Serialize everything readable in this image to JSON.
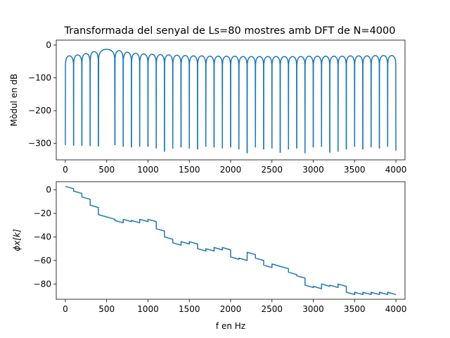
{
  "chart_data": [
    {
      "type": "line",
      "title": "Transformada del senyal de Ls=80 mostres amb DFT de N=4000",
      "xlabel": "",
      "ylabel": "Mòdul en dB",
      "xlim": [
        -110,
        4110
      ],
      "ylim": [
        -350,
        15
      ],
      "xticks": [
        0,
        500,
        1000,
        1500,
        2000,
        2500,
        3000,
        3500,
        4000
      ],
      "yticks": [
        0,
        -100,
        -200,
        -300
      ],
      "xtick_labels": [
        "0",
        "500",
        "1000",
        "1500",
        "2000",
        "2500",
        "3000",
        "3500",
        "4000"
      ],
      "ytick_labels": [
        "0",
        "−100",
        "−200",
        "−300"
      ],
      "grid": false,
      "color": "#1f77b4",
      "series": [
        {
          "main_lobe_center_hz": 500,
          "main_lobe_peak_db": 0,
          "null_spacing_hz": 100,
          "null_frequencies_hz": [
            0,
            100,
            200,
            300,
            400,
            600,
            700,
            800,
            900,
            1000,
            1100,
            1200,
            1300,
            1400,
            1500,
            1600,
            1700,
            1800,
            1900,
            2000,
            2100,
            2200,
            2300,
            2400,
            2500,
            2600,
            2700,
            2800,
            2900,
            3000,
            3100,
            3200,
            3300,
            3400,
            3500,
            3600,
            3700,
            3800,
            3900,
            4000
          ],
          "null_depths_db": [
            -305,
            -307,
            -307,
            -308,
            -309,
            -305,
            -310,
            -312,
            -310,
            -310,
            -315,
            -325,
            -315,
            -312,
            -315,
            -318,
            -310,
            -312,
            -315,
            -312,
            -318,
            -330,
            -312,
            -318,
            -315,
            -328,
            -318,
            -315,
            -330,
            -312,
            -310,
            -328,
            -325,
            -318,
            -310,
            -318,
            -312,
            -315,
            -310,
            -322
          ],
          "sidelobe_peaks_db": [
            -33,
            -30,
            -26,
            -20,
            -13,
            -17,
            -22,
            -25,
            -27,
            -28,
            -29,
            -30,
            -31,
            -32,
            -33,
            -33,
            -34,
            -34,
            -34,
            -34,
            -35,
            -35,
            -35,
            -35,
            -35,
            -35,
            -35,
            -35,
            -34,
            -34,
            -34,
            -34,
            -34,
            -33,
            -33,
            -33,
            -32,
            -32,
            -32
          ]
        }
      ]
    },
    {
      "type": "line",
      "title": "",
      "xlabel": "f en Hz",
      "ylabel": "ϕx[k]",
      "xlim": [
        -110,
        4110
      ],
      "ylim": [
        -93,
        7
      ],
      "xticks": [
        0,
        500,
        1000,
        1500,
        2000,
        2500,
        3000,
        3500,
        4000
      ],
      "yticks": [
        0,
        -20,
        -40,
        -60,
        -80
      ],
      "xtick_labels": [
        "0",
        "500",
        "1000",
        "1500",
        "2000",
        "2500",
        "3000",
        "3500",
        "4000"
      ],
      "ytick_labels": [
        "0",
        "−20",
        "−40",
        "−60",
        "−80"
      ],
      "grid": false,
      "color": "#1f77b4",
      "series": [
        {
          "segments": [
            {
              "f0": 0,
              "y0": 3,
              "f1": 100,
              "y1": 1
            },
            {
              "f0": 100,
              "y0": -1,
              "f1": 200,
              "y1": -3
            },
            {
              "f0": 200,
              "y0": -6,
              "f1": 300,
              "y1": -8
            },
            {
              "f0": 300,
              "y0": -13,
              "f1": 400,
              "y1": -15
            },
            {
              "f0": 400,
              "y0": -21,
              "f1": 600,
              "y1": -25
            },
            {
              "f0": 600,
              "y0": -26,
              "f1": 700,
              "y1": -28
            },
            {
              "f0": 700,
              "y0": -25,
              "f1": 800,
              "y1": -27
            },
            {
              "f0": 800,
              "y0": -26,
              "f1": 900,
              "y1": -28
            },
            {
              "f0": 900,
              "y0": -25,
              "f1": 1000,
              "y1": -27
            },
            {
              "f0": 1000,
              "y0": -25,
              "f1": 1100,
              "y1": -27
            },
            {
              "f0": 1100,
              "y0": -33,
              "f1": 1200,
              "y1": -35
            },
            {
              "f0": 1200,
              "y0": -40,
              "f1": 1300,
              "y1": -42
            },
            {
              "f0": 1300,
              "y0": -45,
              "f1": 1400,
              "y1": -47
            },
            {
              "f0": 1400,
              "y0": -44,
              "f1": 1500,
              "y1": -46
            },
            {
              "f0": 1500,
              "y0": -44,
              "f1": 1600,
              "y1": -46
            },
            {
              "f0": 1600,
              "y0": -50,
              "f1": 1700,
              "y1": -52
            },
            {
              "f0": 1700,
              "y0": -50,
              "f1": 1800,
              "y1": -52
            },
            {
              "f0": 1800,
              "y0": -49,
              "f1": 1900,
              "y1": -51
            },
            {
              "f0": 1900,
              "y0": -49,
              "f1": 2000,
              "y1": -51
            },
            {
              "f0": 2000,
              "y0": -57,
              "f1": 2100,
              "y1": -59
            },
            {
              "f0": 2100,
              "y0": -58,
              "f1": 2200,
              "y1": -60
            },
            {
              "f0": 2200,
              "y0": -53,
              "f1": 2300,
              "y1": -55
            },
            {
              "f0": 2300,
              "y0": -58,
              "f1": 2400,
              "y1": -60
            },
            {
              "f0": 2400,
              "y0": -64,
              "f1": 2500,
              "y1": -66
            },
            {
              "f0": 2500,
              "y0": -63,
              "f1": 2600,
              "y1": -65
            },
            {
              "f0": 2600,
              "y0": -65,
              "f1": 2700,
              "y1": -67
            },
            {
              "f0": 2700,
              "y0": -70,
              "f1": 2800,
              "y1": -72
            },
            {
              "f0": 2800,
              "y0": -73,
              "f1": 2900,
              "y1": -75
            },
            {
              "f0": 2900,
              "y0": -81,
              "f1": 3000,
              "y1": -83
            },
            {
              "f0": 3000,
              "y0": -82,
              "f1": 3100,
              "y1": -84
            },
            {
              "f0": 3100,
              "y0": -80,
              "f1": 3200,
              "y1": -82
            },
            {
              "f0": 3200,
              "y0": -81,
              "f1": 3300,
              "y1": -83
            },
            {
              "f0": 3300,
              "y0": -80,
              "f1": 3400,
              "y1": -82
            },
            {
              "f0": 3400,
              "y0": -87,
              "f1": 3500,
              "y1": -89
            },
            {
              "f0": 3500,
              "y0": -87,
              "f1": 3600,
              "y1": -89
            },
            {
              "f0": 3600,
              "y0": -87,
              "f1": 3700,
              "y1": -89
            },
            {
              "f0": 3700,
              "y0": -87,
              "f1": 3800,
              "y1": -89
            },
            {
              "f0": 3800,
              "y0": -87,
              "f1": 3900,
              "y1": -89
            },
            {
              "f0": 3900,
              "y0": -87,
              "f1": 4000,
              "y1": -89
            }
          ]
        }
      ]
    }
  ]
}
